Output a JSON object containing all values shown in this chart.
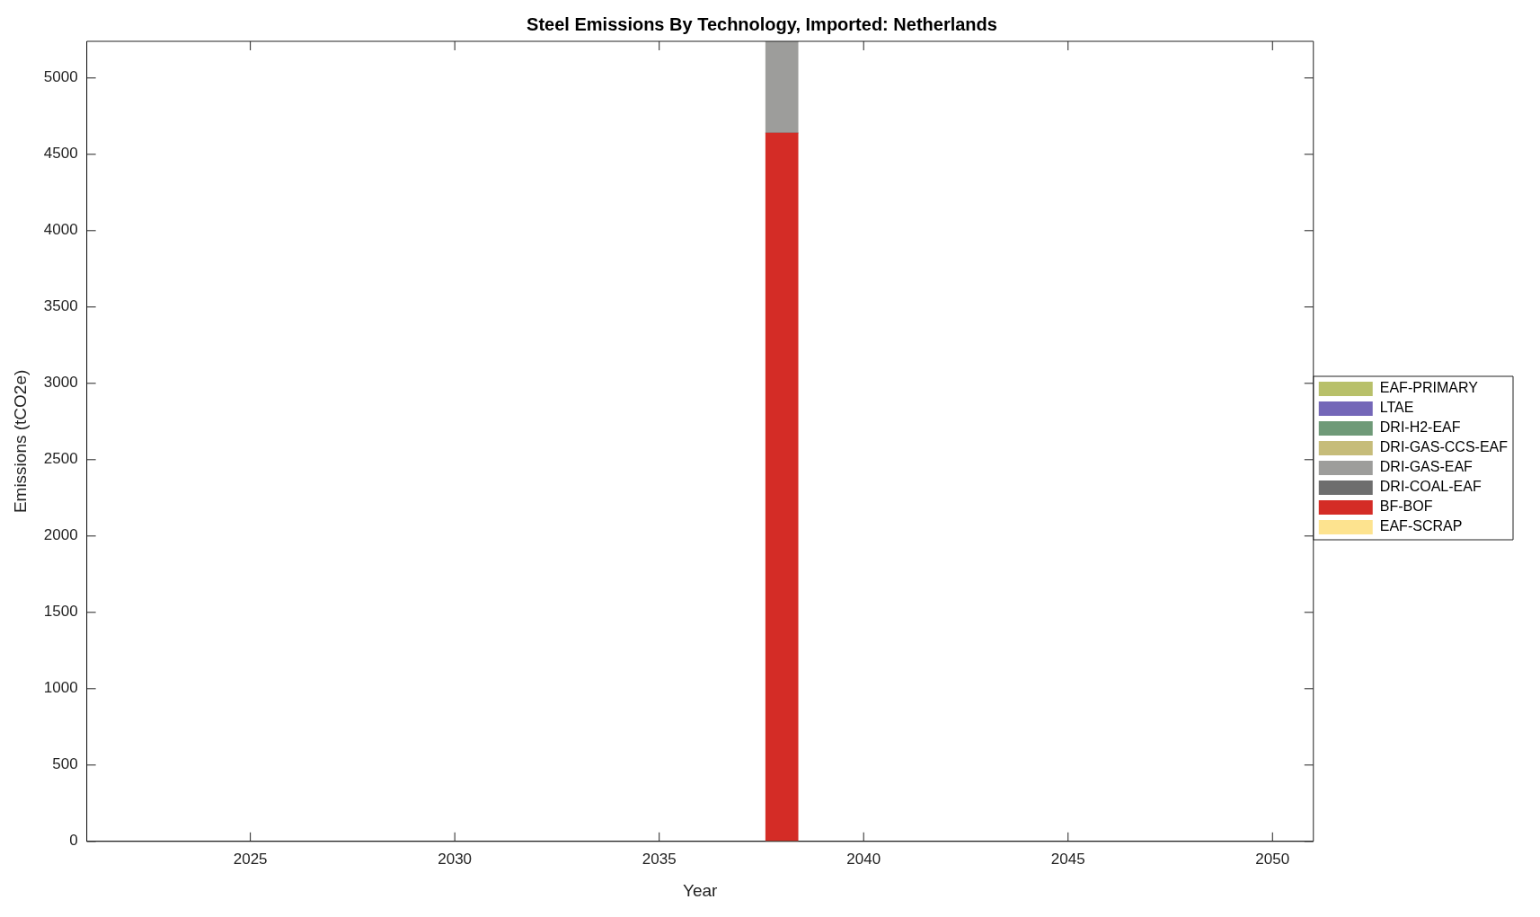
{
  "chart_data": {
    "type": "bar",
    "title": "Steel Emissions By Technology, Imported: Netherlands",
    "xlabel": "Year",
    "ylabel": "Emissions (tCO2e)",
    "x": [
      2038
    ],
    "stacked": true,
    "series": [
      {
        "name": "EAF-SCRAP",
        "color": "#fde38f",
        "values": [
          0
        ]
      },
      {
        "name": "BF-BOF",
        "color": "#d42c26",
        "values": [
          4640
        ]
      },
      {
        "name": "DRI-COAL-EAF",
        "color": "#6e6e6e",
        "values": [
          0
        ]
      },
      {
        "name": "DRI-GAS-EAF",
        "color": "#9d9d9b",
        "values": [
          600
        ]
      },
      {
        "name": "DRI-GAS-CCS-EAF",
        "color": "#c6bc7a",
        "values": [
          0
        ]
      },
      {
        "name": "DRI-H2-EAF",
        "color": "#6f9a78",
        "values": [
          0
        ]
      },
      {
        "name": "LTAE",
        "color": "#7467b8",
        "values": [
          0
        ]
      },
      {
        "name": "EAF-PRIMARY",
        "color": "#b8c06a",
        "values": [
          0
        ]
      }
    ],
    "xlim": [
      2021,
      2051
    ],
    "xticks": [
      2025,
      2030,
      2035,
      2040,
      2045,
      2050
    ],
    "ylim": [
      0,
      5240
    ],
    "yticks": [
      0,
      500,
      1000,
      1500,
      2000,
      2500,
      3000,
      3500,
      4000,
      4500,
      5000
    ],
    "grid": false,
    "legend": "right"
  }
}
